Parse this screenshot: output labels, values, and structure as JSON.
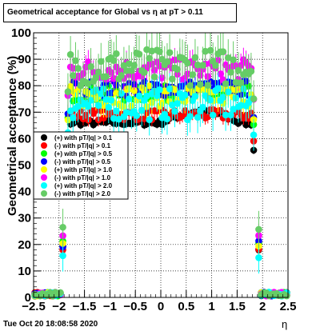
{
  "title": "Geometrical acceptance for Global vs  η at pT > 0.11",
  "timestamp": "Tue Oct 20 18:08:58 2020",
  "chart_data": {
    "type": "scatter",
    "xlabel": "η",
    "ylabel": "Geometrical acceptance (%)",
    "xlim": [
      -2.5,
      2.5
    ],
    "ylim": [
      0,
      100
    ],
    "x_ticks": [
      "−2.5",
      "−2",
      "−1.5",
      "−1",
      "−0.5",
      "0",
      "0.5",
      "1",
      "1.5",
      "2",
      "2.5"
    ],
    "y_ticks": [
      "0",
      "10",
      "20",
      "30",
      "40",
      "50",
      "60",
      "70",
      "80",
      "90",
      "100"
    ],
    "grid": true,
    "legend_position": "left-middle",
    "series": [
      {
        "name": "(+) with pT/|q| > 0.1",
        "color": "#000000",
        "plateau": 66,
        "edge": 19,
        "noise": 1.0,
        "err": 1.5
      },
      {
        "name": "(-) with pT/|q| > 0.1",
        "color": "#ff0000",
        "plateau": 69,
        "edge": 18,
        "noise": 2.0,
        "err": 2.5
      },
      {
        "name": "(+) with pT/|q| > 0.5",
        "color": "#00ff00",
        "plateau": 77,
        "edge": 21,
        "noise": 3.0,
        "err": 3.5
      },
      {
        "name": "(-) with pT/|q| > 0.5",
        "color": "#0000ff",
        "plateau": 79,
        "edge": 20,
        "noise": 3.0,
        "err": 3.5
      },
      {
        "name": "(+) with pT/|q| > 1.0",
        "color": "#ffff00",
        "plateau": 76,
        "edge": 19,
        "noise": 4.0,
        "err": 4.5
      },
      {
        "name": "(-) with pT/|q| > 1.0",
        "color": "#ff00ff",
        "plateau": 86,
        "edge": 23,
        "noise": 4.0,
        "err": 4.5
      },
      {
        "name": "(+) with pT/|q| > 2.0",
        "color": "#00ffff",
        "plateau": 73,
        "edge": 16,
        "noise": 6.0,
        "err": 6.0
      },
      {
        "name": "(-) with pT/|q| > 2.0",
        "color": "#66cc66",
        "plateau": 87,
        "edge": 26,
        "noise": 7.0,
        "err": 7.0
      }
    ]
  }
}
